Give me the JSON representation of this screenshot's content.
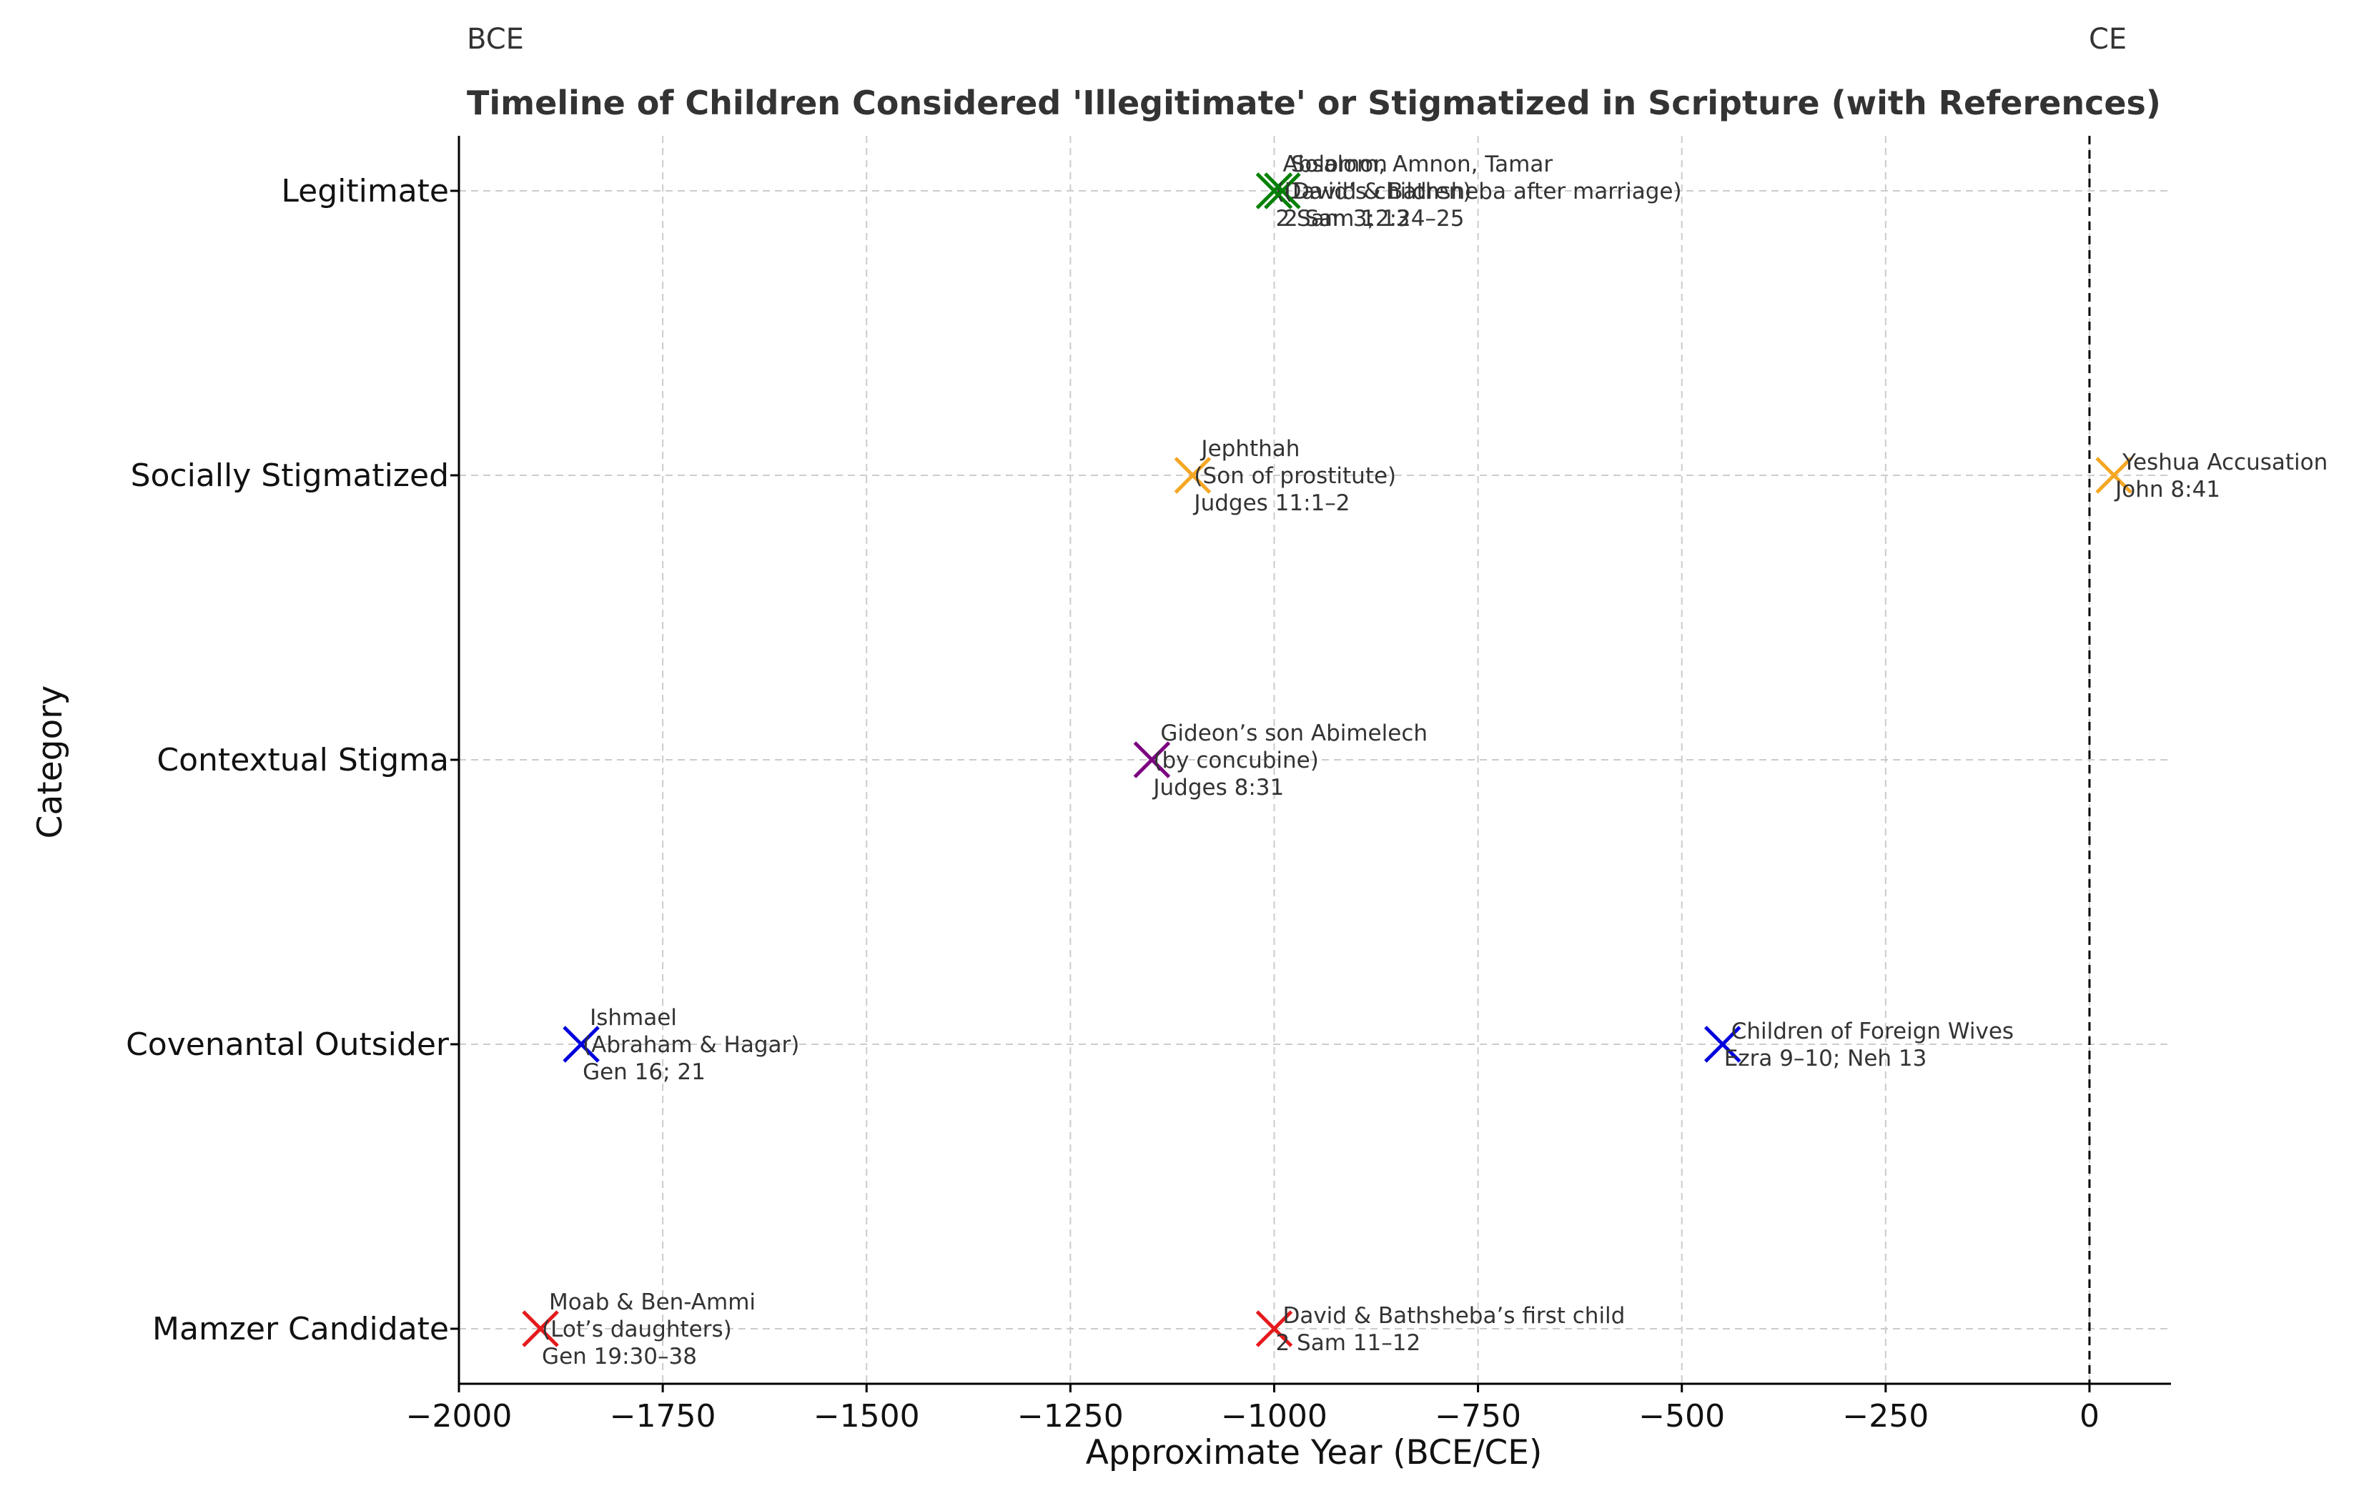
{
  "chart_data": {
    "type": "scatter",
    "title": "Timeline of Children Considered 'Illegitimate' or Stigmatized in Scripture (with References)",
    "xlabel": "Approximate Year (BCE/CE)",
    "ylabel": "Category",
    "xlim": [
      -2000,
      100
    ],
    "x_ticks": [
      -2000,
      -1750,
      -1500,
      -1250,
      -1000,
      -750,
      -500,
      -250,
      0
    ],
    "x_tick_labels": [
      "−2000",
      "−1750",
      "−1500",
      "−1250",
      "−1000",
      "−750",
      "−500",
      "−250",
      "0"
    ],
    "categories": [
      "Mamzer Candidate",
      "Covenantal Outsider",
      "Contextual Stigma",
      "Socially Stigmatized",
      "Legitimate"
    ],
    "grid": true,
    "era_labels": {
      "bce": "BCE",
      "ce": "CE"
    },
    "divider_x": 0,
    "points": [
      {
        "x": -1900,
        "category": "Mamzer Candidate",
        "color": "#e41a1c",
        "lines": [
          "Moab & Ben-Ammi",
          "(Lot’s daughters)",
          "Gen 19:30–38"
        ]
      },
      {
        "x": -1000,
        "category": "Mamzer Candidate",
        "color": "#e41a1c",
        "lines": [
          "David & Bathsheba’s first child",
          "2 Sam 11–12"
        ]
      },
      {
        "x": -1850,
        "category": "Covenantal Outsider",
        "color": "#0000dd",
        "lines": [
          "Ishmael",
          "(Abraham & Hagar)",
          "Gen 16; 21"
        ]
      },
      {
        "x": -450,
        "category": "Covenantal Outsider",
        "color": "#0000dd",
        "lines": [
          "Children of Foreign Wives",
          "Ezra 9–10; Neh 13"
        ]
      },
      {
        "x": -1150,
        "category": "Contextual Stigma",
        "color": "#7b0080",
        "lines": [
          "Gideon’s son Abimelech",
          "(by concubine)",
          "Judges 8:31"
        ]
      },
      {
        "x": -1100,
        "category": "Socially Stigmatized",
        "color": "#f5a623",
        "lines": [
          "Jephthah",
          "(Son of prostitute)",
          "Judges 11:1–2"
        ]
      },
      {
        "x": 30,
        "category": "Socially Stigmatized",
        "color": "#f5a623",
        "lines": [
          "Yeshua Accusation",
          "John 8:41"
        ]
      },
      {
        "x": -1000,
        "category": "Legitimate",
        "color": "#008000",
        "lines": [
          "Absalom, Amnon, Tamar",
          "(David’s children)",
          "2 Sam 3; 13"
        ]
      },
      {
        "x": -990,
        "category": "Legitimate",
        "color": "#008000",
        "lines": [
          "Solomon",
          "(David & Bathsheba after marriage)",
          "2 Sam 12:24–25"
        ]
      }
    ]
  }
}
